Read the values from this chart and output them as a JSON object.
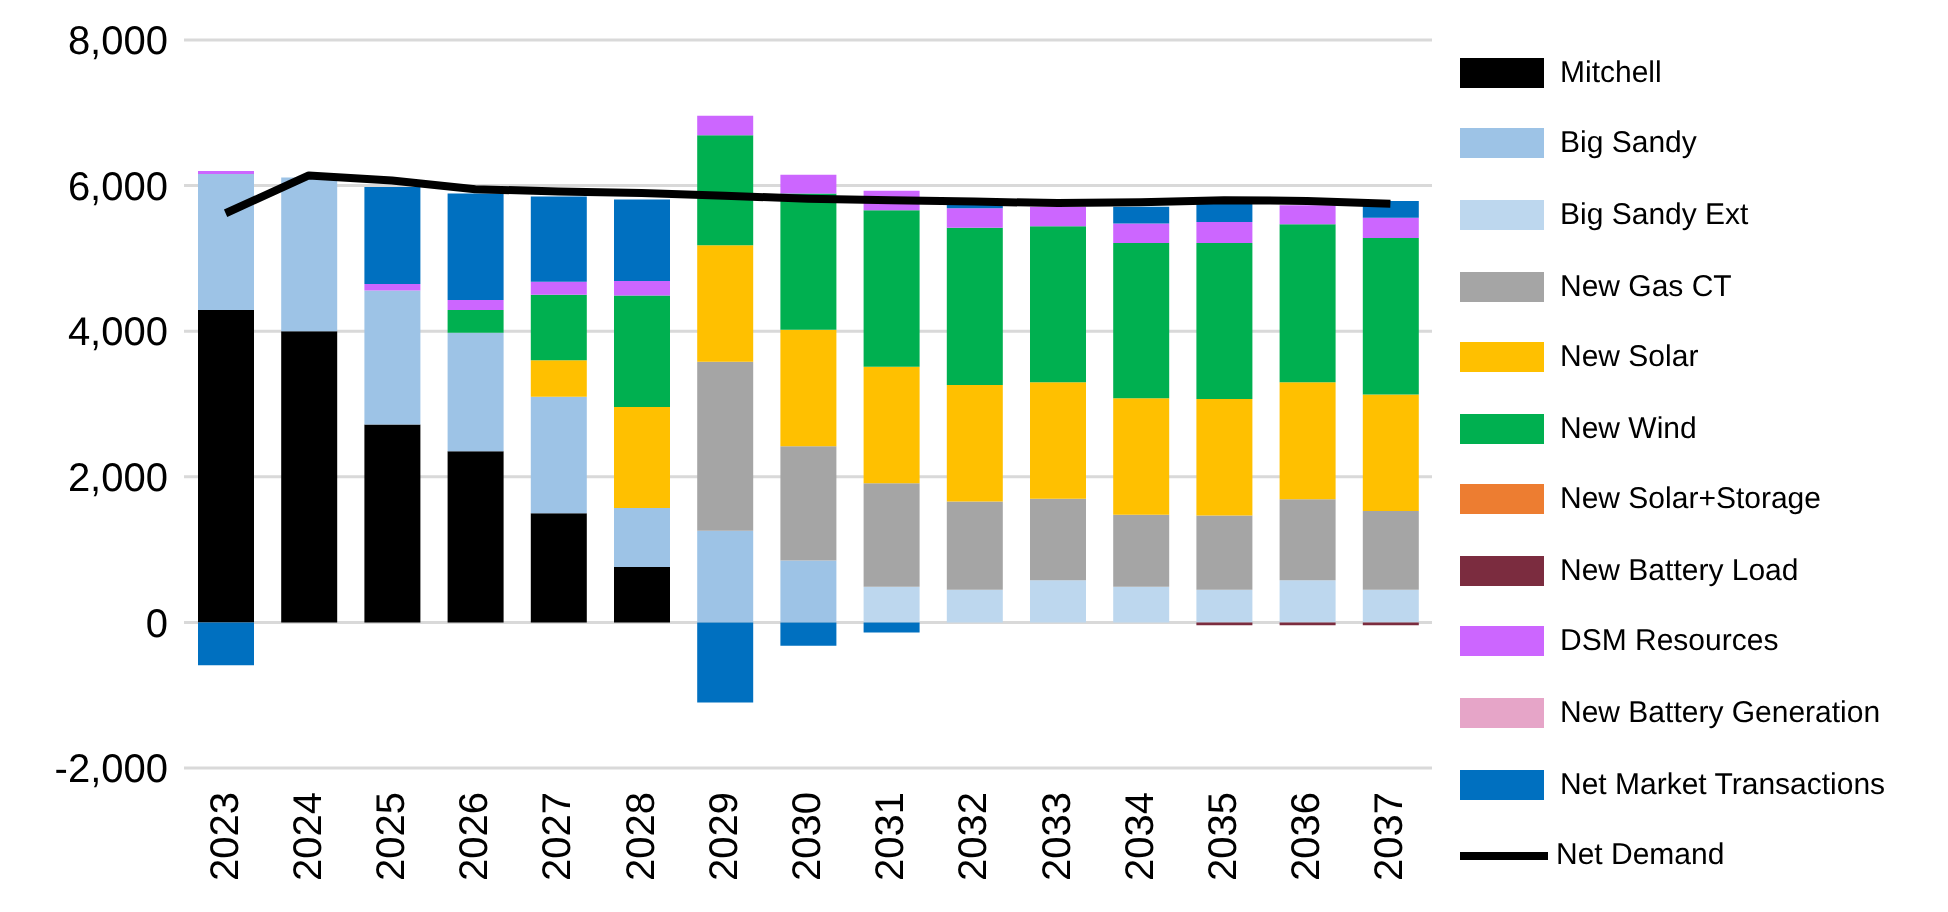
{
  "chart_data": {
    "type": "bar",
    "stacked": true,
    "categories": [
      "2023",
      "2024",
      "2025",
      "2026",
      "2027",
      "2028",
      "2029",
      "2030",
      "2031",
      "2032",
      "2033",
      "2034",
      "2035",
      "2036",
      "2037"
    ],
    "ylim": [
      -2000,
      8000
    ],
    "yticks": [
      {
        "value": -2000,
        "label": "-2,000"
      },
      0,
      {
        "value": 2000,
        "label": "2,000"
      },
      {
        "value": 4000,
        "label": "4,000"
      },
      {
        "value": 6000,
        "label": "6,000"
      },
      {
        "value": 8000,
        "label": "8,000"
      }
    ],
    "grid": "y",
    "legend": "right",
    "series": [
      {
        "name": "Mitchell",
        "color": "#000000",
        "values": [
          4290,
          4000,
          2720,
          2350,
          1500,
          760,
          null,
          null,
          null,
          null,
          null,
          null,
          null,
          null,
          null
        ]
      },
      {
        "name": "Big Sandy",
        "color": "#9dc3e6",
        "values": [
          1870,
          2110,
          1840,
          1630,
          1600,
          810,
          1260,
          850,
          null,
          null,
          null,
          null,
          null,
          null,
          null
        ]
      },
      {
        "name": "Big Sandy Ext",
        "color": "#bdd7ee",
        "values": [
          null,
          null,
          null,
          null,
          null,
          null,
          null,
          null,
          490,
          450,
          580,
          490,
          450,
          580,
          450
        ]
      },
      {
        "name": "New Gas CT",
        "color": "#a5a5a5",
        "values": [
          null,
          null,
          null,
          null,
          null,
          null,
          2320,
          1570,
          1420,
          1210,
          1120,
          990,
          1020,
          1110,
          1080
        ]
      },
      {
        "name": "New Solar",
        "color": "#ffc000",
        "values": [
          null,
          null,
          null,
          null,
          500,
          1390,
          1600,
          1600,
          1600,
          1600,
          1600,
          1600,
          1600,
          1610,
          1600
        ]
      },
      {
        "name": "New Wind",
        "color": "#00b050",
        "values": [
          null,
          null,
          null,
          310,
          900,
          1530,
          1510,
          1870,
          2150,
          2160,
          2140,
          2130,
          2140,
          2170,
          2150
        ]
      },
      {
        "name": "New Solar+Storage",
        "color": "#ed7d31",
        "values": [
          null,
          null,
          null,
          null,
          null,
          null,
          null,
          null,
          null,
          null,
          null,
          null,
          null,
          null,
          null
        ]
      },
      {
        "name": "New Battery Load",
        "color": "#7b2c3f",
        "values": [
          null,
          null,
          null,
          null,
          null,
          null,
          null,
          null,
          null,
          null,
          null,
          null,
          -40,
          -40,
          -40
        ]
      },
      {
        "name": "DSM Resources",
        "color": "#cc66ff",
        "values": [
          40,
          null,
          90,
          140,
          180,
          200,
          270,
          260,
          270,
          270,
          270,
          270,
          290,
          260,
          280
        ]
      },
      {
        "name": "New Battery Generation",
        "color": "#e6a5c8",
        "values": [
          null,
          null,
          null,
          null,
          null,
          null,
          null,
          null,
          null,
          null,
          null,
          null,
          null,
          null,
          null
        ]
      },
      {
        "name": "Net Market Transactions",
        "color": "#0070c0",
        "values": [
          -590,
          null,
          1330,
          1460,
          1170,
          1120,
          -1100,
          -320,
          -140,
          60,
          null,
          230,
          250,
          null,
          230
        ]
      },
      {
        "name": "Net Demand",
        "type": "line",
        "color": "#000000",
        "values": [
          5620,
          6140,
          6070,
          5950,
          5920,
          5900,
          5860,
          5820,
          5800,
          5780,
          5760,
          5770,
          5800,
          5790,
          5750
        ]
      }
    ]
  }
}
